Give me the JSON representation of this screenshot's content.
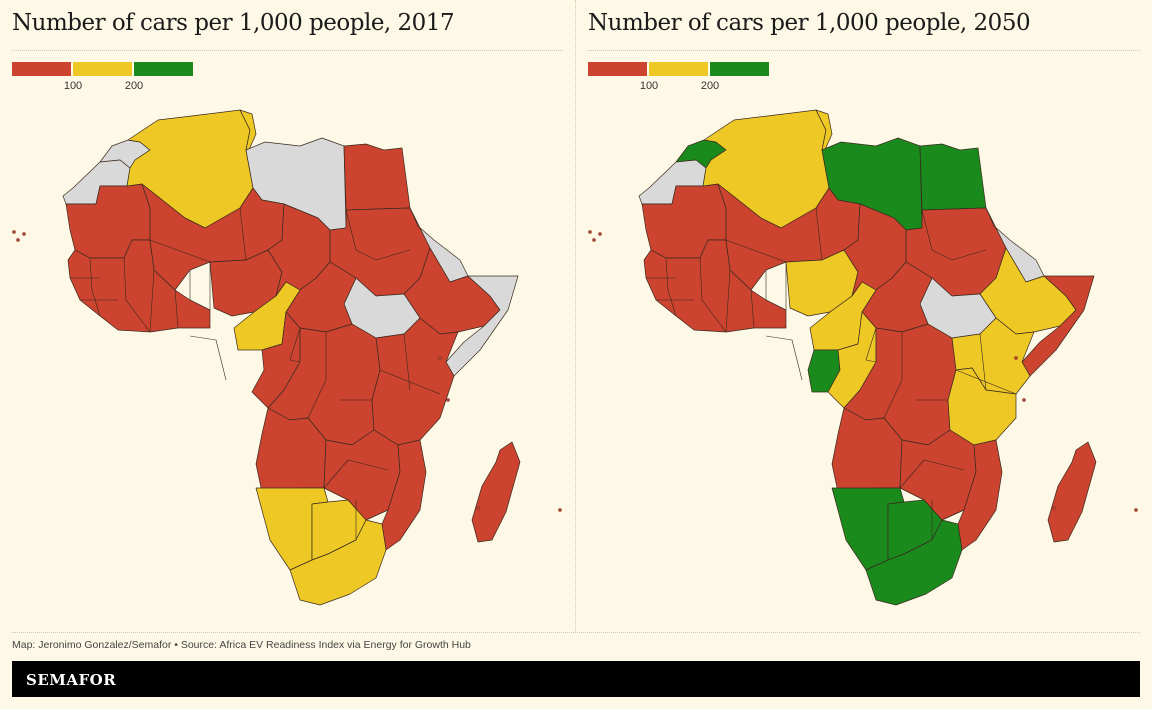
{
  "colors": {
    "low": "#cc4330",
    "mid": "#eec825",
    "high": "#1b8a1d",
    "nodata": "#d9d9d9",
    "background": "#fdf9e6"
  },
  "legend": {
    "ticks": [
      "100",
      "200"
    ],
    "bands": [
      "low",
      "mid",
      "high"
    ]
  },
  "maps": [
    {
      "title": "Number of cars per 1,000 people, 2017",
      "regions": {
        "morocco": "nodata",
        "western_sahara": "nodata",
        "mauritania": "low",
        "algeria": "mid",
        "tunisia": "mid",
        "libya": "nodata",
        "egypt": "low",
        "west_africa": "low",
        "mali_niger": "low",
        "nigeria": "low",
        "chad": "low",
        "sudan": "low",
        "eritrea_djibouti": "nodata",
        "ethiopia": "low",
        "somalia": "nodata",
        "south_sudan": "nodata",
        "car": "low",
        "cameroon": "mid",
        "congo_basin": "low",
        "drc": "low",
        "east_africa": "low",
        "angola": "low",
        "zambia_zimbabwe": "low",
        "mozambique": "low",
        "namibia": "mid",
        "botswana": "mid",
        "south_africa": "mid",
        "madagascar": "low"
      }
    },
    {
      "title": "Number of cars per 1,000 people, 2050",
      "regions": {
        "morocco": "high",
        "western_sahara": "nodata",
        "mauritania": "low",
        "algeria": "mid",
        "tunisia": "mid",
        "libya": "high",
        "egypt": "high",
        "west_africa": "low",
        "senegal_gambia": "mid",
        "cote_divoire": "high",
        "ghana_coast": "mid",
        "mali_niger": "low",
        "nigeria": "mid",
        "chad": "low",
        "sudan": "low",
        "eritrea_djibouti": "nodata",
        "ethiopia": "mid",
        "somalia": "low",
        "south_sudan": "nodata",
        "car": "low",
        "cameroon": "mid",
        "gabon": "high",
        "congo_basin": "mid",
        "drc": "low",
        "kenya": "mid",
        "tanzania": "mid",
        "angola": "low",
        "zambia_zimbabwe": "low",
        "mozambique": "low",
        "namibia": "high",
        "botswana": "high",
        "south_africa": "high",
        "madagascar": "low"
      }
    }
  ],
  "credit": "Map: Jeronimo Gonzalez/Semafor • Source: Africa EV Readiness Index via Energy for Growth Hub",
  "brand": "SEMAFOR"
}
